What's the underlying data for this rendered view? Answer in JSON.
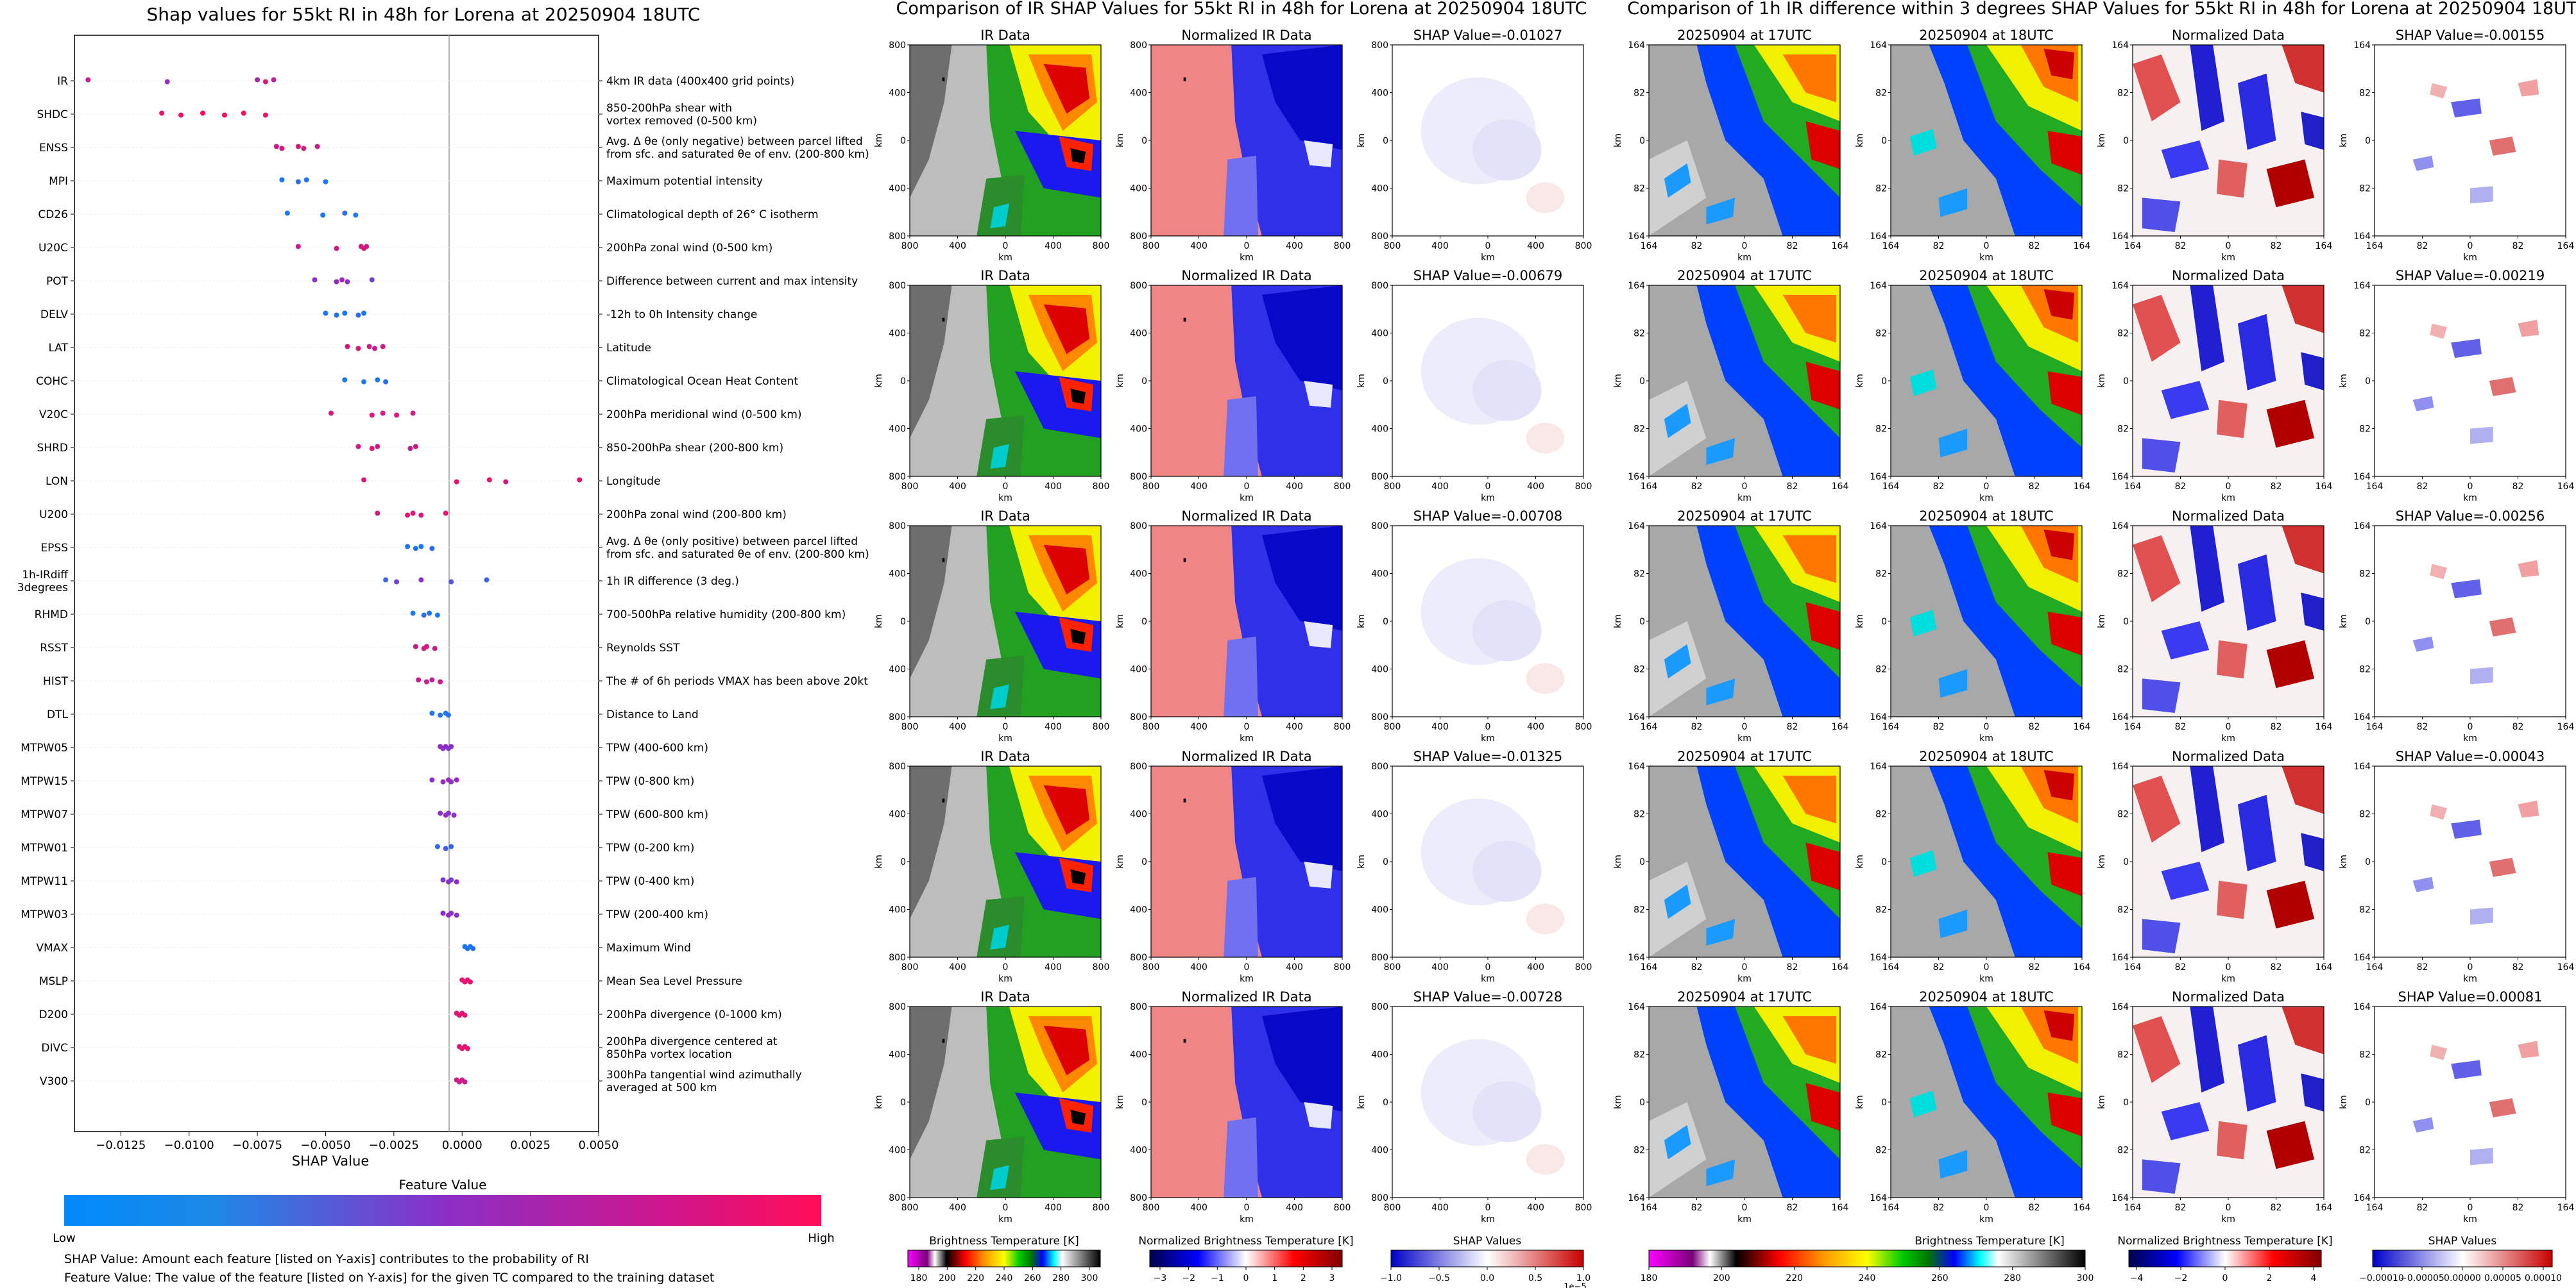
{
  "shap_panel": {
    "title": "Shap values for 55kt RI in 48h for Lorena at 20250904 18UTC",
    "xlabel": "SHAP Value",
    "xticks": [
      "−0.0125",
      "−0.0100",
      "−0.0075",
      "−0.0050",
      "−0.0025",
      "0.0000",
      "0.0025",
      "0.0050"
    ],
    "colorbar_title": "Feature Value",
    "colorbar_low": "Low",
    "colorbar_high": "High",
    "note1": "SHAP Value: Amount each feature [listed on Y-axis] contributes to the probability of RI",
    "note2": "Feature Value: The value of the feature [listed on Y-axis] for the given TC compared to the training dataset"
  },
  "ir_group": {
    "suptitle": "Comparison of IR SHAP Values for 55kt RI in 48h for Lorena at 20250904 18UTC",
    "col_titles": [
      "IR Data",
      "Normalized IR Data"
    ],
    "shap_titles": [
      "SHAP Value=-0.01027",
      "SHAP Value=-0.00679",
      "SHAP Value=-0.00708",
      "SHAP Value=-0.01325",
      "SHAP Value=-0.00728"
    ],
    "axis_label": "km",
    "yticks": [
      "800",
      "400",
      "0",
      "400",
      "800"
    ],
    "xticks": [
      "800",
      "400",
      "0",
      "400",
      "800"
    ],
    "cb1_label": "Brightness Temperature [K]",
    "cb1_ticks": [
      "180",
      "200",
      "220",
      "240",
      "260",
      "280",
      "300"
    ],
    "cb2_label": "Normalized Brightness Temperature [K]",
    "cb2_ticks": [
      "−3",
      "−2",
      "−1",
      "0",
      "1",
      "2",
      "3"
    ],
    "cb3_label": "SHAP Values",
    "cb3_ticks": [
      "−1.0",
      "−0.5",
      "0.0",
      "0.5",
      "1.0"
    ],
    "cb3_offset": "1e−5"
  },
  "diff_group": {
    "suptitle": "Comparison of 1h IR difference within 3 degrees SHAP Values for 55kt RI in 48h for Lorena at 20250904 18UTC",
    "col_titles": [
      "20250904 at 17UTC",
      "20250904 at 18UTC",
      "Normalized Data"
    ],
    "shap_titles": [
      "SHAP Value=-0.00155",
      "SHAP Value=-0.00219",
      "SHAP Value=-0.00256",
      "SHAP Value=-0.00043",
      "SHAP Value=0.00081"
    ],
    "axis_label": "km",
    "yticks": [
      "164",
      "82",
      "0",
      "82",
      "164"
    ],
    "xticks": [
      "164",
      "82",
      "0",
      "82",
      "164"
    ],
    "cb1_label": "Brightness Temperature [K]",
    "cb1_ticks": [
      "180",
      "200",
      "220",
      "240",
      "260",
      "280",
      "300"
    ],
    "cb2_label": "Normalized Brightness Temperature [K]",
    "cb2_ticks": [
      "−4",
      "−2",
      "0",
      "2",
      "4"
    ],
    "cb3_label": "SHAP Values",
    "cb3_ticks": [
      "−0.00010",
      "−0.00005",
      "0.00000",
      "0.00005",
      "0.00010"
    ]
  },
  "colors": {
    "shap_low": "#1e88e5",
    "shap_high": "#ff0d57",
    "ir_gray_light": "#c8c8c8",
    "ir_gray_dark": "#707070",
    "norm_red": "#f08585",
    "norm_blue": "#1a1ae0"
  },
  "chart_data": {
    "type": "scatter",
    "title": "Shap values for 55kt RI in 48h for Lorena at 20250904 18UTC",
    "xlabel": "SHAP Value",
    "xlim": [
      -0.0142,
      0.005
    ],
    "features": [
      {
        "name": "IR",
        "desc": "4km IR data (400x400 grid points)",
        "points": [
          [
            -0.0137,
            0.75
          ],
          [
            -0.0108,
            0.55
          ],
          [
            -0.0075,
            0.6
          ],
          [
            -0.0072,
            0.85
          ],
          [
            -0.0069,
            0.7
          ]
        ]
      },
      {
        "name": "SHDC",
        "desc": "850-200hPa shear with\nvortex removed (0-500 km)",
        "points": [
          [
            -0.011,
            0.9
          ],
          [
            -0.0103,
            0.95
          ],
          [
            -0.0095,
            1.0
          ],
          [
            -0.0087,
            0.95
          ],
          [
            -0.008,
            0.98
          ],
          [
            -0.0072,
            0.9
          ]
        ]
      },
      {
        "name": "ENSS",
        "desc": "Avg. Δ θe (only negative) between parcel lifted\nfrom sfc. and saturated θe of env. (200-800 km)",
        "points": [
          [
            -0.0068,
            0.8
          ],
          [
            -0.0066,
            0.82
          ],
          [
            -0.006,
            0.85
          ],
          [
            -0.0058,
            0.8
          ],
          [
            -0.0053,
            0.78
          ]
        ]
      },
      {
        "name": "MPI",
        "desc": "Maximum potential intensity",
        "points": [
          [
            -0.0066,
            0.1
          ],
          [
            -0.006,
            0.15
          ],
          [
            -0.0057,
            0.12
          ],
          [
            -0.005,
            0.1
          ]
        ]
      },
      {
        "name": "CD26",
        "desc": "Climatological depth of 26° C isotherm",
        "points": [
          [
            -0.0064,
            0.1
          ],
          [
            -0.0051,
            0.12
          ],
          [
            -0.0043,
            0.15
          ],
          [
            -0.0039,
            0.1
          ]
        ]
      },
      {
        "name": "U20C",
        "desc": "200hPa zonal wind (0-500 km)",
        "points": [
          [
            -0.006,
            0.75
          ],
          [
            -0.0046,
            0.8
          ],
          [
            -0.0037,
            0.85
          ],
          [
            -0.0036,
            0.8
          ],
          [
            -0.0035,
            0.78
          ]
        ]
      },
      {
        "name": "POT",
        "desc": "Difference between current and max intensity",
        "points": [
          [
            -0.0054,
            0.5
          ],
          [
            -0.0046,
            0.55
          ],
          [
            -0.0044,
            0.6
          ],
          [
            -0.0042,
            0.5
          ],
          [
            -0.0033,
            0.4
          ]
        ]
      },
      {
        "name": "DELV",
        "desc": "-12h to 0h Intensity change",
        "points": [
          [
            -0.005,
            0.1
          ],
          [
            -0.0046,
            0.12
          ],
          [
            -0.0043,
            0.1
          ],
          [
            -0.0038,
            0.15
          ],
          [
            -0.0036,
            0.1
          ]
        ]
      },
      {
        "name": "LAT",
        "desc": "Latitude",
        "points": [
          [
            -0.0042,
            0.8
          ],
          [
            -0.0038,
            0.85
          ],
          [
            -0.0034,
            0.8
          ],
          [
            -0.0032,
            0.75
          ],
          [
            -0.0029,
            0.8
          ]
        ]
      },
      {
        "name": "COHC",
        "desc": "Climatological Ocean Heat Content",
        "points": [
          [
            -0.0043,
            0.1
          ],
          [
            -0.0036,
            0.12
          ],
          [
            -0.0031,
            0.1
          ],
          [
            -0.0028,
            0.15
          ]
        ]
      },
      {
        "name": "V20C",
        "desc": "200hPa meridional wind (0-500 km)",
        "points": [
          [
            -0.0048,
            0.8
          ],
          [
            -0.0033,
            0.85
          ],
          [
            -0.0029,
            0.8
          ],
          [
            -0.0024,
            0.85
          ],
          [
            -0.0018,
            0.8
          ]
        ]
      },
      {
        "name": "SHRD",
        "desc": "850-200hPa shear (200-800 km)",
        "points": [
          [
            -0.0038,
            0.8
          ],
          [
            -0.0033,
            0.85
          ],
          [
            -0.0031,
            0.8
          ],
          [
            -0.0019,
            0.75
          ],
          [
            -0.0017,
            0.8
          ]
        ]
      },
      {
        "name": "LON",
        "desc": "Longitude",
        "points": [
          [
            -0.0036,
            0.85
          ],
          [
            -0.0002,
            0.9
          ],
          [
            0.001,
            0.9
          ],
          [
            0.0016,
            0.85
          ],
          [
            0.0043,
            0.9
          ]
        ]
      },
      {
        "name": "U200",
        "desc": "200hPa zonal wind (200-800 km)",
        "points": [
          [
            -0.0031,
            0.85
          ],
          [
            -0.002,
            0.9
          ],
          [
            -0.0018,
            0.85
          ],
          [
            -0.0015,
            0.8
          ],
          [
            -0.0006,
            0.9
          ]
        ]
      },
      {
        "name": "EPSS",
        "desc": "Avg. Δ θe (only positive) between parcel lifted\nfrom sfc. and saturated θe of env. (200-800 km)",
        "points": [
          [
            -0.002,
            0.1
          ],
          [
            -0.0017,
            0.12
          ],
          [
            -0.0015,
            0.1
          ],
          [
            -0.0011,
            0.15
          ]
        ]
      },
      {
        "name": "1h-IRdiff\n3degrees",
        "desc": "1h IR difference (3 deg.)",
        "points": [
          [
            -0.0028,
            0.2
          ],
          [
            -0.0024,
            0.4
          ],
          [
            -0.0015,
            0.5
          ],
          [
            -0.0004,
            0.3
          ],
          [
            0.0009,
            0.2
          ]
        ]
      },
      {
        "name": "RHMD",
        "desc": "700-500hPa relative humidity (200-800 km)",
        "points": [
          [
            -0.0018,
            0.1
          ],
          [
            -0.0014,
            0.15
          ],
          [
            -0.0012,
            0.12
          ],
          [
            -0.0009,
            0.1
          ]
        ]
      },
      {
        "name": "RSST",
        "desc": "Reynolds SST",
        "points": [
          [
            -0.0017,
            0.8
          ],
          [
            -0.0014,
            0.85
          ],
          [
            -0.0013,
            0.8
          ],
          [
            -0.001,
            0.75
          ]
        ]
      },
      {
        "name": "HIST",
        "desc": "The # of 6h periods VMAX has been above 20kt",
        "points": [
          [
            -0.0016,
            0.8
          ],
          [
            -0.0013,
            0.75
          ],
          [
            -0.0011,
            0.7
          ],
          [
            -0.0008,
            0.8
          ]
        ]
      },
      {
        "name": "DTL",
        "desc": "Distance to Land",
        "points": [
          [
            -0.0011,
            0.1
          ],
          [
            -0.0008,
            0.12
          ],
          [
            -0.0006,
            0.1
          ],
          [
            -0.0005,
            0.15
          ]
        ]
      },
      {
        "name": "MTPW05",
        "desc": "TPW (400-600 km)",
        "points": [
          [
            -0.0008,
            0.55
          ],
          [
            -0.0007,
            0.5
          ],
          [
            -0.0006,
            0.5
          ],
          [
            -0.0005,
            0.45
          ],
          [
            -0.0004,
            0.5
          ]
        ]
      },
      {
        "name": "MTPW15",
        "desc": "TPW (0-800 km)",
        "points": [
          [
            -0.0011,
            0.5
          ],
          [
            -0.0007,
            0.55
          ],
          [
            -0.0005,
            0.6
          ],
          [
            -0.0004,
            0.5
          ],
          [
            -0.0002,
            0.55
          ]
        ]
      },
      {
        "name": "MTPW07",
        "desc": "TPW (600-800 km)",
        "points": [
          [
            -0.0008,
            0.5
          ],
          [
            -0.0006,
            0.55
          ],
          [
            -0.0005,
            0.5
          ],
          [
            -0.0003,
            0.5
          ]
        ]
      },
      {
        "name": "MTPW01",
        "desc": "TPW (0-200 km)",
        "points": [
          [
            -0.0009,
            0.2
          ],
          [
            -0.0006,
            0.25
          ],
          [
            -0.0004,
            0.2
          ]
        ]
      },
      {
        "name": "MTPW11",
        "desc": "TPW (0-400 km)",
        "points": [
          [
            -0.0007,
            0.45
          ],
          [
            -0.0005,
            0.5
          ],
          [
            -0.0004,
            0.45
          ],
          [
            -0.0002,
            0.5
          ]
        ]
      },
      {
        "name": "MTPW03",
        "desc": "TPW (200-400 km)",
        "points": [
          [
            -0.0007,
            0.5
          ],
          [
            -0.0005,
            0.55
          ],
          [
            -0.0004,
            0.5
          ],
          [
            -0.0002,
            0.5
          ]
        ]
      },
      {
        "name": "VMAX",
        "desc": "Maximum Wind",
        "points": [
          [
            0.0001,
            0.1
          ],
          [
            0.0002,
            0.12
          ],
          [
            0.0003,
            0.1
          ],
          [
            0.0004,
            0.15
          ]
        ]
      },
      {
        "name": "MSLP",
        "desc": "Mean Sea Level Pressure",
        "points": [
          [
            0.0,
            0.9
          ],
          [
            0.0001,
            0.9
          ],
          [
            0.0002,
            0.85
          ],
          [
            0.0003,
            0.9
          ]
        ]
      },
      {
        "name": "D200",
        "desc": "200hPa divergence (0-1000 km)",
        "points": [
          [
            -0.0002,
            0.85
          ],
          [
            -0.0001,
            0.9
          ],
          [
            0.0,
            0.85
          ],
          [
            0.0001,
            0.9
          ]
        ]
      },
      {
        "name": "DIVC",
        "desc": "200hPa divergence centered at\n850hPa vortex location",
        "points": [
          [
            -0.0001,
            0.85
          ],
          [
            0.0,
            0.9
          ],
          [
            0.0001,
            0.85
          ],
          [
            0.0002,
            0.9
          ]
        ]
      },
      {
        "name": "V300",
        "desc": "300hPa tangential wind azimuthally\naveraged at 500 km",
        "points": [
          [
            -0.0002,
            0.8
          ],
          [
            -0.0001,
            0.75
          ],
          [
            0.0,
            0.8
          ],
          [
            0.0001,
            0.75
          ]
        ]
      }
    ]
  }
}
